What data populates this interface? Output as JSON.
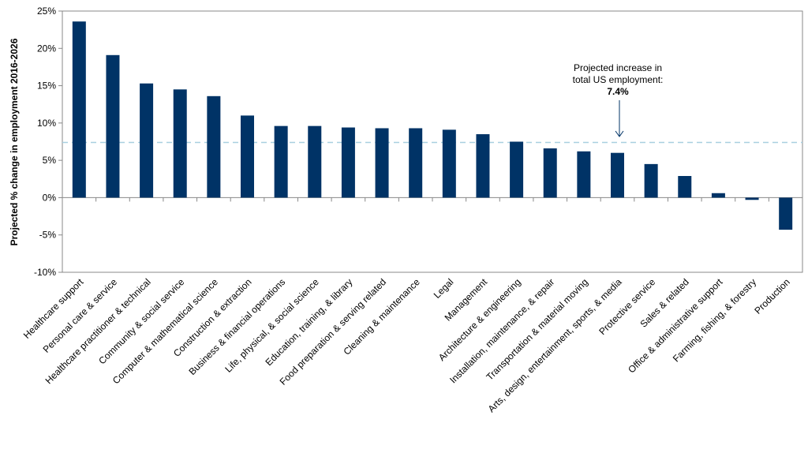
{
  "chart_data": {
    "type": "bar",
    "title": "",
    "xlabel": "",
    "ylabel": "Projected % change in employment 2016-2026",
    "ylim": [
      -10,
      25
    ],
    "ytick_values": [
      -10,
      -5,
      0,
      5,
      10,
      15,
      20,
      25
    ],
    "ytick_labels": [
      "-10%",
      "-5%",
      "0%",
      "5%",
      "10%",
      "15%",
      "20%",
      "25%"
    ],
    "grid": false,
    "legend": "none",
    "bar_color": "#003366",
    "reference_line": {
      "value": 7.4,
      "color": "#a8cfe0",
      "style": "dashed"
    },
    "annotation": {
      "line1": "Projected increase in",
      "line2": "total US employment:",
      "value_label": "7.4%",
      "points_to_category": "Arts, design, entertainment, sports, & media"
    },
    "categories": [
      "Healthcare support",
      "Personal care & service",
      "Healthcare practitioner & technical",
      "Community & social service",
      "Computer & mathematical science",
      "Construction & extraction",
      "Business & financial operations",
      "Life, physical, & social science",
      "Education, training, & library",
      "Food preparation & serving related",
      "Cleaning & maintenance",
      "Legal",
      "Management",
      "Architecture & engineering",
      "Installation, maintenance, & repair",
      "Transportation & material moving",
      "Arts, design, entertainment, sports, & media",
      "Protective service",
      "Sales & related",
      "Office & administrative support",
      "Farming, fishing, & forestry",
      "Production"
    ],
    "values": [
      23.6,
      19.1,
      15.3,
      14.5,
      13.6,
      11.0,
      9.6,
      9.6,
      9.4,
      9.3,
      9.3,
      9.1,
      8.5,
      7.5,
      6.6,
      6.2,
      6.0,
      4.5,
      2.9,
      0.6,
      -0.3,
      -4.3
    ]
  }
}
